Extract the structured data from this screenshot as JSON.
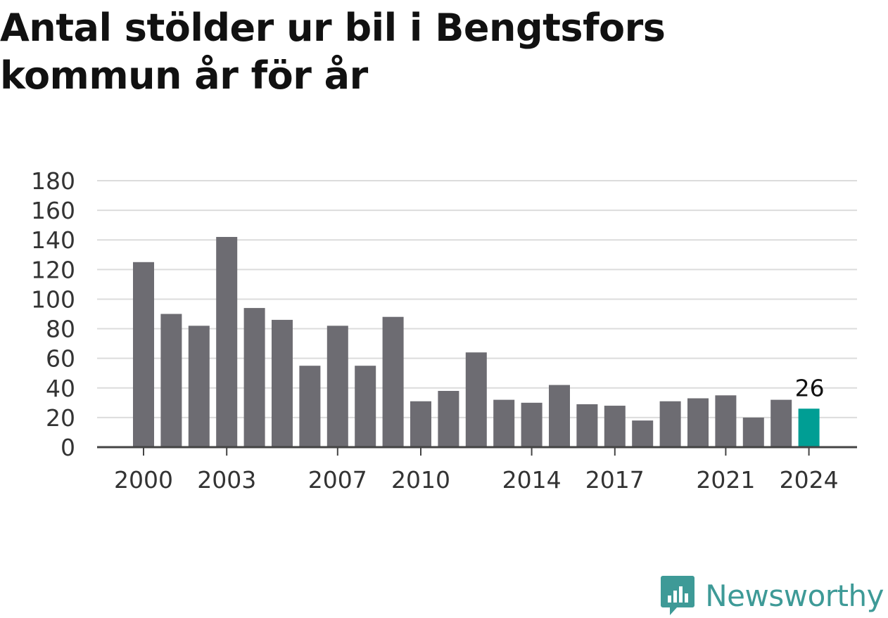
{
  "chart_data": {
    "type": "bar",
    "title": "Antal stölder ur bil i Bengtsfors kommun år för år",
    "xlabel": "",
    "ylabel": "",
    "categories": [
      2000,
      2001,
      2002,
      2003,
      2004,
      2005,
      2006,
      2007,
      2008,
      2009,
      2010,
      2011,
      2012,
      2013,
      2014,
      2015,
      2016,
      2017,
      2018,
      2019,
      2020,
      2021,
      2022,
      2023,
      2024
    ],
    "values": [
      125,
      90,
      82,
      142,
      94,
      86,
      55,
      82,
      55,
      88,
      31,
      38,
      64,
      32,
      30,
      42,
      29,
      28,
      18,
      31,
      33,
      35,
      20,
      32,
      26
    ],
    "x_tick_labels": [
      "2000",
      "2003",
      "2007",
      "2010",
      "2014",
      "2017",
      "2021",
      "2024"
    ],
    "y_ticks": [
      0,
      20,
      40,
      60,
      80,
      100,
      120,
      140,
      160,
      180
    ],
    "ylim": [
      0,
      180
    ],
    "grid": true,
    "highlight": {
      "category": 2024,
      "label": "26"
    },
    "colors": {
      "bar": "#6d6c72",
      "highlight": "#009e94",
      "grid": "#dcdcdc",
      "axis": "#444444",
      "brand": "#3e9a97"
    }
  },
  "branding": {
    "name": "Newsworthy",
    "icon": "newsworthy-logo-icon"
  }
}
